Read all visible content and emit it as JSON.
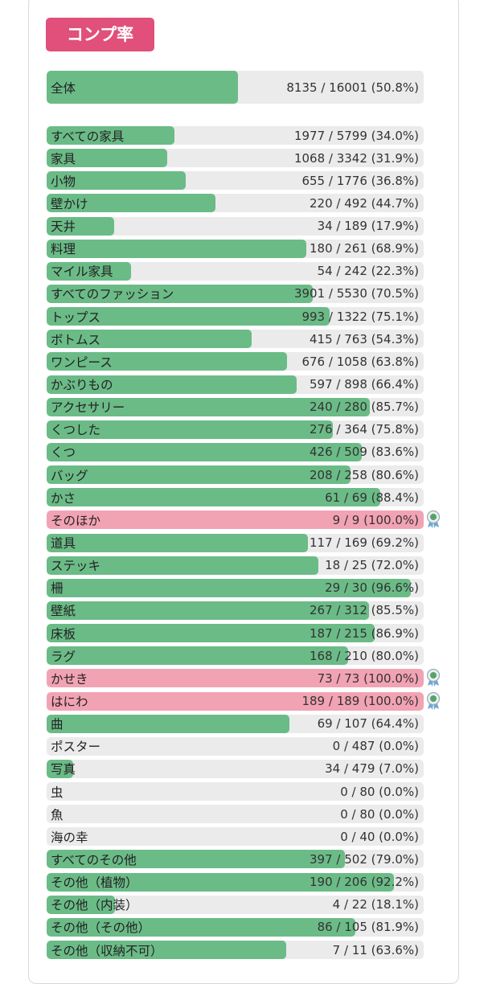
{
  "title": "コンプ率",
  "bar_color": "#6bbb87",
  "complete_color": "#f2a3b3",
  "overall": {
    "label": "全体",
    "stat": "8135 / 16001 (50.8%)",
    "percent": 50.8
  },
  "rows": [
    {
      "label": "すべての家具",
      "stat": "1977 / 5799 (34.0%)",
      "percent": 34.0
    },
    {
      "label": "家具",
      "stat": "1068 / 3342 (31.9%)",
      "percent": 31.9
    },
    {
      "label": "小物",
      "stat": "655 / 1776 (36.8%)",
      "percent": 36.8
    },
    {
      "label": "壁かけ",
      "stat": "220 / 492 (44.7%)",
      "percent": 44.7
    },
    {
      "label": "天井",
      "stat": "34 / 189 (17.9%)",
      "percent": 17.9
    },
    {
      "label": "料理",
      "stat": "180 / 261 (68.9%)",
      "percent": 68.9
    },
    {
      "label": "マイル家具",
      "stat": "54 / 242 (22.3%)",
      "percent": 22.3
    },
    {
      "label": "すべてのファッション",
      "stat": "3901 / 5530 (70.5%)",
      "percent": 70.5
    },
    {
      "label": "トップス",
      "stat": "993 / 1322 (75.1%)",
      "percent": 75.1
    },
    {
      "label": "ボトムス",
      "stat": "415 / 763 (54.3%)",
      "percent": 54.3
    },
    {
      "label": "ワンピース",
      "stat": "676 / 1058 (63.8%)",
      "percent": 63.8
    },
    {
      "label": "かぶりもの",
      "stat": "597 / 898 (66.4%)",
      "percent": 66.4
    },
    {
      "label": "アクセサリー",
      "stat": "240 / 280 (85.7%)",
      "percent": 85.7
    },
    {
      "label": "くつした",
      "stat": "276 / 364 (75.8%)",
      "percent": 75.8
    },
    {
      "label": "くつ",
      "stat": "426 / 509 (83.6%)",
      "percent": 83.6
    },
    {
      "label": "バッグ",
      "stat": "208 / 258 (80.6%)",
      "percent": 80.6
    },
    {
      "label": "かさ",
      "stat": "61 / 69 (88.4%)",
      "percent": 88.4
    },
    {
      "label": "そのほか",
      "stat": "9 / 9 (100.0%)",
      "percent": 100.0
    },
    {
      "label": "道具",
      "stat": "117 / 169 (69.2%)",
      "percent": 69.2
    },
    {
      "label": "ステッキ",
      "stat": "18 / 25 (72.0%)",
      "percent": 72.0
    },
    {
      "label": "柵",
      "stat": "29 / 30 (96.6%)",
      "percent": 96.6
    },
    {
      "label": "壁紙",
      "stat": "267 / 312 (85.5%)",
      "percent": 85.5
    },
    {
      "label": "床板",
      "stat": "187 / 215 (86.9%)",
      "percent": 86.9
    },
    {
      "label": "ラグ",
      "stat": "168 / 210 (80.0%)",
      "percent": 80.0
    },
    {
      "label": "かせき",
      "stat": "73 / 73 (100.0%)",
      "percent": 100.0
    },
    {
      "label": "はにわ",
      "stat": "189 / 189 (100.0%)",
      "percent": 100.0
    },
    {
      "label": "曲",
      "stat": "69 / 107 (64.4%)",
      "percent": 64.4
    },
    {
      "label": "ポスター",
      "stat": "0 / 487 (0.0%)",
      "percent": 0.0
    },
    {
      "label": "写真",
      "stat": "34 / 479 (7.0%)",
      "percent": 7.0
    },
    {
      "label": "虫",
      "stat": "0 / 80 (0.0%)",
      "percent": 0.0
    },
    {
      "label": "魚",
      "stat": "0 / 80 (0.0%)",
      "percent": 0.0
    },
    {
      "label": "海の幸",
      "stat": "0 / 40 (0.0%)",
      "percent": 0.0
    },
    {
      "label": "すべてのその他",
      "stat": "397 / 502 (79.0%)",
      "percent": 79.0
    },
    {
      "label": "その他（植物）",
      "stat": "190 / 206 (92.2%)",
      "percent": 92.2
    },
    {
      "label": "その他（内装）",
      "stat": "4 / 22 (18.1%)",
      "percent": 18.1
    },
    {
      "label": "その他（その他）",
      "stat": "86 / 105 (81.9%)",
      "percent": 81.9
    },
    {
      "label": "その他（収納不可）",
      "stat": "7 / 11 (63.6%)",
      "percent": 63.6
    }
  ]
}
